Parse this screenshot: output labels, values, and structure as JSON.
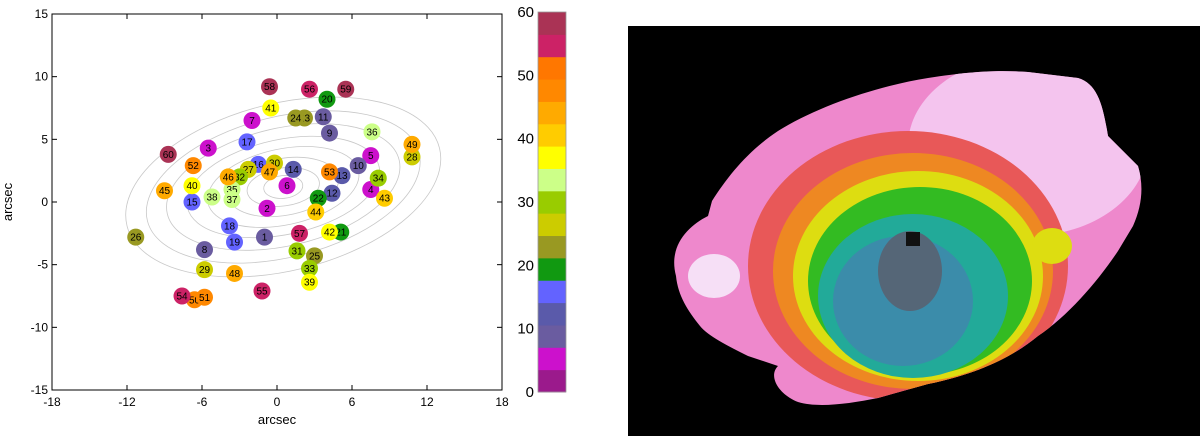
{
  "chart_data": [
    {
      "type": "scatter",
      "xlabel": "arcsec",
      "ylabel": "arcsec",
      "xlim": [
        -18,
        18
      ],
      "ylim": [
        -15,
        15
      ],
      "x_ticks": [
        "-18",
        "-12",
        "-6",
        "0",
        "6",
        "12",
        "18"
      ],
      "y_ticks": [
        "15",
        "10",
        "5",
        "0",
        "-5",
        "-10",
        "-15"
      ],
      "background": "grey surface-brightness contours",
      "colorbar": {
        "range": [
          0,
          60
        ],
        "tick_labels": [
          "60",
          "50",
          "40",
          "30",
          "20",
          "10",
          "0"
        ],
        "colors": [
          "#9b1a8c",
          "#cc11cc",
          "#6a5ca0",
          "#5a5aaa",
          "#6363ff",
          "#119911",
          "#999922",
          "#cccc00",
          "#99cc00",
          "#ccff88",
          "#ffff00",
          "#ffcc00",
          "#ffaa00",
          "#ff8800",
          "#ff7700",
          "#cc2266",
          "#aa3355"
        ]
      },
      "points": [
        {
          "id": "1",
          "x": -1.0,
          "y": -2.8,
          "c": 2
        },
        {
          "id": "2",
          "x": -0.8,
          "y": -0.5,
          "c": 1
        },
        {
          "id": "3",
          "x": -5.5,
          "y": 4.3,
          "c": 1
        },
        {
          "id": "4",
          "x": 7.5,
          "y": 1.0,
          "c": 1
        },
        {
          "id": "5",
          "x": 7.5,
          "y": 3.7,
          "c": 1
        },
        {
          "id": "6",
          "x": 0.8,
          "y": 1.3,
          "c": 1
        },
        {
          "id": "7",
          "x": -2.0,
          "y": 6.5,
          "c": 1
        },
        {
          "id": "8",
          "x": -5.8,
          "y": -3.8,
          "c": 2
        },
        {
          "id": "9",
          "x": 4.2,
          "y": 5.5,
          "c": 2
        },
        {
          "id": "10",
          "x": 6.5,
          "y": 2.9,
          "c": 2
        },
        {
          "id": "11",
          "x": 3.7,
          "y": 6.8,
          "c": 2
        },
        {
          "id": "12",
          "x": 4.4,
          "y": 0.7,
          "c": 3
        },
        {
          "id": "13",
          "x": 5.2,
          "y": 2.1,
          "c": 3
        },
        {
          "id": "14",
          "x": 1.3,
          "y": 2.6,
          "c": 3
        },
        {
          "id": "15",
          "x": -6.8,
          "y": 0.0,
          "c": 4
        },
        {
          "id": "16",
          "x": -1.5,
          "y": 3.0,
          "c": 4
        },
        {
          "id": "17",
          "x": -2.4,
          "y": 4.8,
          "c": 4
        },
        {
          "id": "18",
          "x": -3.8,
          "y": -1.9,
          "c": 4
        },
        {
          "id": "19",
          "x": -3.4,
          "y": -3.2,
          "c": 4
        },
        {
          "id": "20",
          "x": 4.0,
          "y": 8.2,
          "c": 5
        },
        {
          "id": "21",
          "x": 5.1,
          "y": -2.4,
          "c": 5
        },
        {
          "id": "22",
          "x": 3.3,
          "y": 0.3,
          "c": 5
        },
        {
          "id": "23",
          "x": 2.2,
          "y": 6.7,
          "c": 6
        },
        {
          "id": "24",
          "x": 1.5,
          "y": 6.7,
          "c": 6
        },
        {
          "id": "25",
          "x": 3.0,
          "y": -4.3,
          "c": 6
        },
        {
          "id": "26",
          "x": -11.3,
          "y": -2.8,
          "c": 6
        },
        {
          "id": "27",
          "x": -2.3,
          "y": 2.6,
          "c": 7
        },
        {
          "id": "28",
          "x": 10.8,
          "y": 3.6,
          "c": 7
        },
        {
          "id": "29",
          "x": -5.8,
          "y": -5.4,
          "c": 7
        },
        {
          "id": "30",
          "x": -0.2,
          "y": 3.1,
          "c": 7
        },
        {
          "id": "31",
          "x": 1.6,
          "y": -3.9,
          "c": 8
        },
        {
          "id": "32",
          "x": -3.0,
          "y": 2.0,
          "c": 8
        },
        {
          "id": "33",
          "x": 2.6,
          "y": -5.3,
          "c": 8
        },
        {
          "id": "34",
          "x": 8.1,
          "y": 1.9,
          "c": 8
        },
        {
          "id": "35",
          "x": -3.6,
          "y": 1.0,
          "c": 9
        },
        {
          "id": "36",
          "x": 7.6,
          "y": 5.6,
          "c": 9
        },
        {
          "id": "37",
          "x": -3.6,
          "y": 0.2,
          "c": 9
        },
        {
          "id": "38",
          "x": -5.2,
          "y": 0.4,
          "c": 9
        },
        {
          "id": "39",
          "x": 2.6,
          "y": -6.4,
          "c": 10
        },
        {
          "id": "40",
          "x": -6.8,
          "y": 1.3,
          "c": 10
        },
        {
          "id": "41",
          "x": -0.5,
          "y": 7.5,
          "c": 10
        },
        {
          "id": "42",
          "x": 4.2,
          "y": -2.4,
          "c": 10
        },
        {
          "id": "43",
          "x": 8.6,
          "y": 0.3,
          "c": 11
        },
        {
          "id": "44",
          "x": 3.1,
          "y": -0.8,
          "c": 11
        },
        {
          "id": "45",
          "x": -9.0,
          "y": 0.9,
          "c": 12
        },
        {
          "id": "46",
          "x": -3.9,
          "y": 2.0,
          "c": 12
        },
        {
          "id": "47",
          "x": -0.6,
          "y": 2.4,
          "c": 12
        },
        {
          "id": "48",
          "x": -3.4,
          "y": -5.7,
          "c": 12
        },
        {
          "id": "49",
          "x": 10.8,
          "y": 4.6,
          "c": 12
        },
        {
          "id": "50",
          "x": -6.6,
          "y": -7.8,
          "c": 13
        },
        {
          "id": "51",
          "x": -5.8,
          "y": -7.6,
          "c": 13
        },
        {
          "id": "52",
          "x": -6.7,
          "y": 2.9,
          "c": 13
        },
        {
          "id": "53",
          "x": 4.2,
          "y": 2.4,
          "c": 13
        },
        {
          "id": "54",
          "x": -7.6,
          "y": -7.5,
          "c": 15
        },
        {
          "id": "55",
          "x": -1.2,
          "y": -7.1,
          "c": 15
        },
        {
          "id": "56",
          "x": 2.6,
          "y": 9.0,
          "c": 15
        },
        {
          "id": "57",
          "x": 1.8,
          "y": -2.5,
          "c": 15
        },
        {
          "id": "58",
          "x": -0.6,
          "y": 9.2,
          "c": 16
        },
        {
          "id": "59",
          "x": 5.5,
          "y": 9.0,
          "c": 16
        },
        {
          "id": "60",
          "x": -8.7,
          "y": 3.8,
          "c": 16
        }
      ]
    },
    {
      "type": "heatmap",
      "description_colors": {
        "background": "#000000",
        "outer": "#ee88cc",
        "outer_light": "#f4c4ee",
        "ring_red": "#e85858",
        "ring_orange": "#ee8822",
        "ring_yellow": "#dddd11",
        "ring_green": "#33bb22",
        "ring_teal": "#22aa99",
        "core_blue": "#3b8caa",
        "core_grey": "#556677"
      }
    }
  ]
}
